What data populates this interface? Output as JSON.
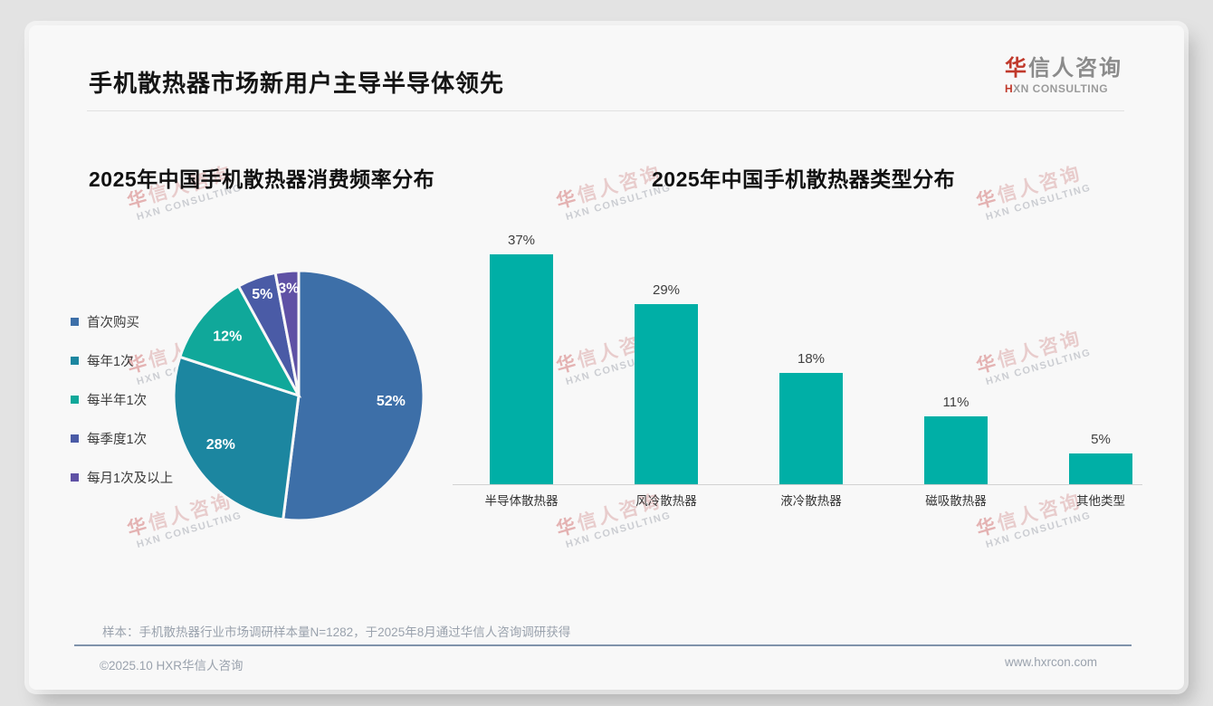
{
  "header": {
    "title": "手机散热器市场新用户主导半导体领先",
    "logo": {
      "cn_accent": "华",
      "cn_rest": "信人咨询",
      "en_accent": "H",
      "en_rest": "XN CONSULTING",
      "accent_color": "#C0392B"
    }
  },
  "watermark": {
    "line1": "华信人咨询",
    "line2": "HXN CONSULTING"
  },
  "chart_data": [
    {
      "type": "pie",
      "title": "2025年中国手机散热器消费频率分布",
      "categories": [
        "首次购买",
        "每年1次",
        "每半年1次",
        "每季度1次",
        "每月1次及以上"
      ],
      "values": [
        52,
        28,
        12,
        5,
        3
      ],
      "unit": "%",
      "colors": [
        "#3D6FA8",
        "#1C86A0",
        "#10A89A",
        "#4A5BA6",
        "#5F51A5"
      ],
      "label_color": "#ffffff",
      "legend_position": "left",
      "start_angle_deg": 0,
      "direction": "clockwise"
    },
    {
      "type": "bar",
      "title": "2025年中国手机散热器类型分布",
      "categories": [
        "半导体散热器",
        "风冷散热器",
        "液冷散热器",
        "磁吸散热器",
        "其他类型"
      ],
      "values": [
        37,
        29,
        18,
        11,
        5
      ],
      "unit": "%",
      "bar_color": "#00AFA6",
      "xlabel": "",
      "ylabel": "",
      "ylim": [
        0,
        40
      ],
      "grid": false,
      "value_labels": "above"
    }
  ],
  "footer": {
    "note": "样本：手机散热器行业市场调研样本量N=1282，于2025年8月通过华信人咨询调研获得",
    "copyright": "©2025.10 HXR华信人咨询",
    "website": "www.hxrcon.com"
  }
}
